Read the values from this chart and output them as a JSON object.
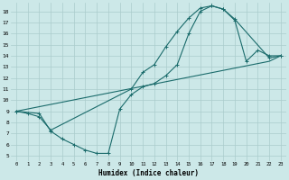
{
  "xlabel": "Humidex (Indice chaleur)",
  "bg_color": "#cce8e8",
  "grid_color": "#aacccc",
  "line_color": "#1a6b6b",
  "xlim": [
    -0.5,
    23.5
  ],
  "ylim": [
    4.5,
    18.8
  ],
  "xticks": [
    0,
    1,
    2,
    3,
    4,
    5,
    6,
    7,
    8,
    9,
    10,
    11,
    12,
    13,
    14,
    15,
    16,
    17,
    18,
    19,
    20,
    21,
    22,
    23
  ],
  "yticks": [
    5,
    6,
    7,
    8,
    9,
    10,
    11,
    12,
    13,
    14,
    15,
    16,
    17,
    18
  ],
  "curve1_x": [
    0,
    1,
    2,
    3,
    10,
    11,
    12,
    13,
    14,
    15,
    16,
    17,
    18,
    19,
    22,
    23
  ],
  "curve1_y": [
    9.0,
    8.8,
    8.5,
    7.3,
    11.0,
    12.5,
    13.2,
    14.8,
    16.2,
    17.4,
    18.3,
    18.5,
    18.2,
    17.3,
    13.8,
    14.0
  ],
  "curve2_x": [
    0,
    2,
    3,
    4,
    5,
    6,
    7,
    8,
    9,
    10,
    11,
    12,
    13,
    14,
    15,
    16,
    17,
    18,
    19,
    20,
    21,
    22,
    23
  ],
  "curve2_y": [
    9.0,
    8.8,
    7.2,
    6.5,
    6.0,
    5.5,
    5.2,
    5.2,
    9.2,
    10.5,
    11.2,
    11.5,
    12.2,
    13.2,
    16.0,
    18.0,
    18.5,
    18.2,
    17.2,
    13.5,
    14.5,
    14.0,
    14.0
  ],
  "curve3_x": [
    0,
    22,
    23
  ],
  "curve3_y": [
    9.0,
    13.5,
    14.0
  ]
}
